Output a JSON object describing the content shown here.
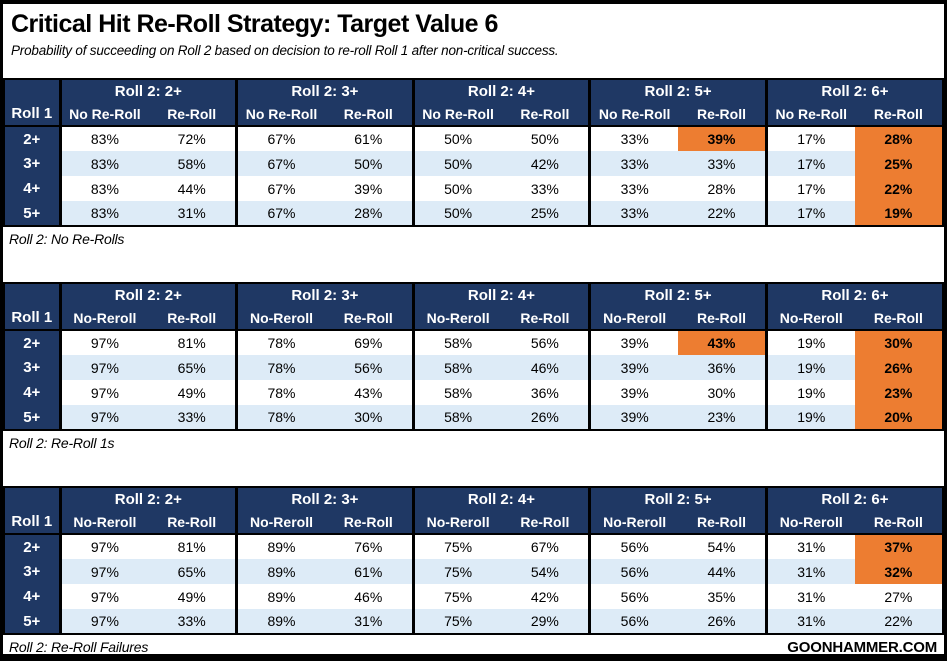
{
  "page": {
    "title": "Critical Hit Re-Roll Strategy: Target Value 6",
    "subtitle": "Probability of succeeding on Roll 2 based on decision to re-roll Roll 1 after non-critical success.",
    "brand": "GOONHAMMER.COM"
  },
  "colors": {
    "header_navy": "#1f3864",
    "row_alt_blue": "#ddebf7",
    "highlight_orange": "#ed7d31",
    "border_black": "#000000",
    "background_white": "#ffffff"
  },
  "chart_data": [
    {
      "type": "table",
      "title": "Roll 2: No Re-Rolls",
      "row_header": "Roll 1",
      "col_groups": [
        "Roll 2: 2+",
        "Roll 2: 3+",
        "Roll 2: 4+",
        "Roll 2: 5+",
        "Roll 2: 6+"
      ],
      "sub_headers": [
        "No Re-Roll",
        "Re-Roll"
      ],
      "row_labels": [
        "2+",
        "3+",
        "4+",
        "5+"
      ],
      "rows": [
        [
          "83%",
          "72%",
          "67%",
          "61%",
          "50%",
          "50%",
          "33%",
          "39%",
          "17%",
          "28%"
        ],
        [
          "83%",
          "58%",
          "67%",
          "50%",
          "50%",
          "42%",
          "33%",
          "33%",
          "17%",
          "25%"
        ],
        [
          "83%",
          "44%",
          "67%",
          "39%",
          "50%",
          "33%",
          "33%",
          "28%",
          "17%",
          "22%"
        ],
        [
          "83%",
          "31%",
          "67%",
          "28%",
          "50%",
          "25%",
          "33%",
          "22%",
          "17%",
          "19%"
        ]
      ],
      "highlight_cells": [
        [
          0,
          7
        ],
        [
          0,
          9
        ],
        [
          1,
          9
        ],
        [
          2,
          9
        ],
        [
          3,
          9
        ]
      ]
    },
    {
      "type": "table",
      "title": "Roll 2: Re-Roll 1s",
      "row_header": "Roll 1",
      "col_groups": [
        "Roll 2: 2+",
        "Roll 2: 3+",
        "Roll 2: 4+",
        "Roll 2: 5+",
        "Roll 2: 6+"
      ],
      "sub_headers": [
        "No-Reroll",
        "Re-Roll"
      ],
      "row_labels": [
        "2+",
        "3+",
        "4+",
        "5+"
      ],
      "rows": [
        [
          "97%",
          "81%",
          "78%",
          "69%",
          "58%",
          "56%",
          "39%",
          "43%",
          "19%",
          "30%"
        ],
        [
          "97%",
          "65%",
          "78%",
          "56%",
          "58%",
          "46%",
          "39%",
          "36%",
          "19%",
          "26%"
        ],
        [
          "97%",
          "49%",
          "78%",
          "43%",
          "58%",
          "36%",
          "39%",
          "30%",
          "19%",
          "23%"
        ],
        [
          "97%",
          "33%",
          "78%",
          "30%",
          "58%",
          "26%",
          "39%",
          "23%",
          "19%",
          "20%"
        ]
      ],
      "highlight_cells": [
        [
          0,
          7
        ],
        [
          0,
          9
        ],
        [
          1,
          9
        ],
        [
          2,
          9
        ],
        [
          3,
          9
        ]
      ]
    },
    {
      "type": "table",
      "title": "Roll 2: Re-Roll Failures",
      "row_header": "Roll 1",
      "col_groups": [
        "Roll 2: 2+",
        "Roll 2: 3+",
        "Roll 2: 4+",
        "Roll 2: 5+",
        "Roll 2: 6+"
      ],
      "sub_headers": [
        "No-Reroll",
        "Re-Roll"
      ],
      "row_labels": [
        "2+",
        "3+",
        "4+",
        "5+"
      ],
      "rows": [
        [
          "97%",
          "81%",
          "89%",
          "76%",
          "75%",
          "67%",
          "56%",
          "54%",
          "31%",
          "37%"
        ],
        [
          "97%",
          "65%",
          "89%",
          "61%",
          "75%",
          "54%",
          "56%",
          "44%",
          "31%",
          "32%"
        ],
        [
          "97%",
          "49%",
          "89%",
          "46%",
          "75%",
          "42%",
          "56%",
          "35%",
          "31%",
          "27%"
        ],
        [
          "97%",
          "33%",
          "89%",
          "31%",
          "75%",
          "29%",
          "56%",
          "26%",
          "31%",
          "22%"
        ]
      ],
      "highlight_cells": [
        [
          0,
          9
        ],
        [
          1,
          9
        ]
      ]
    }
  ]
}
